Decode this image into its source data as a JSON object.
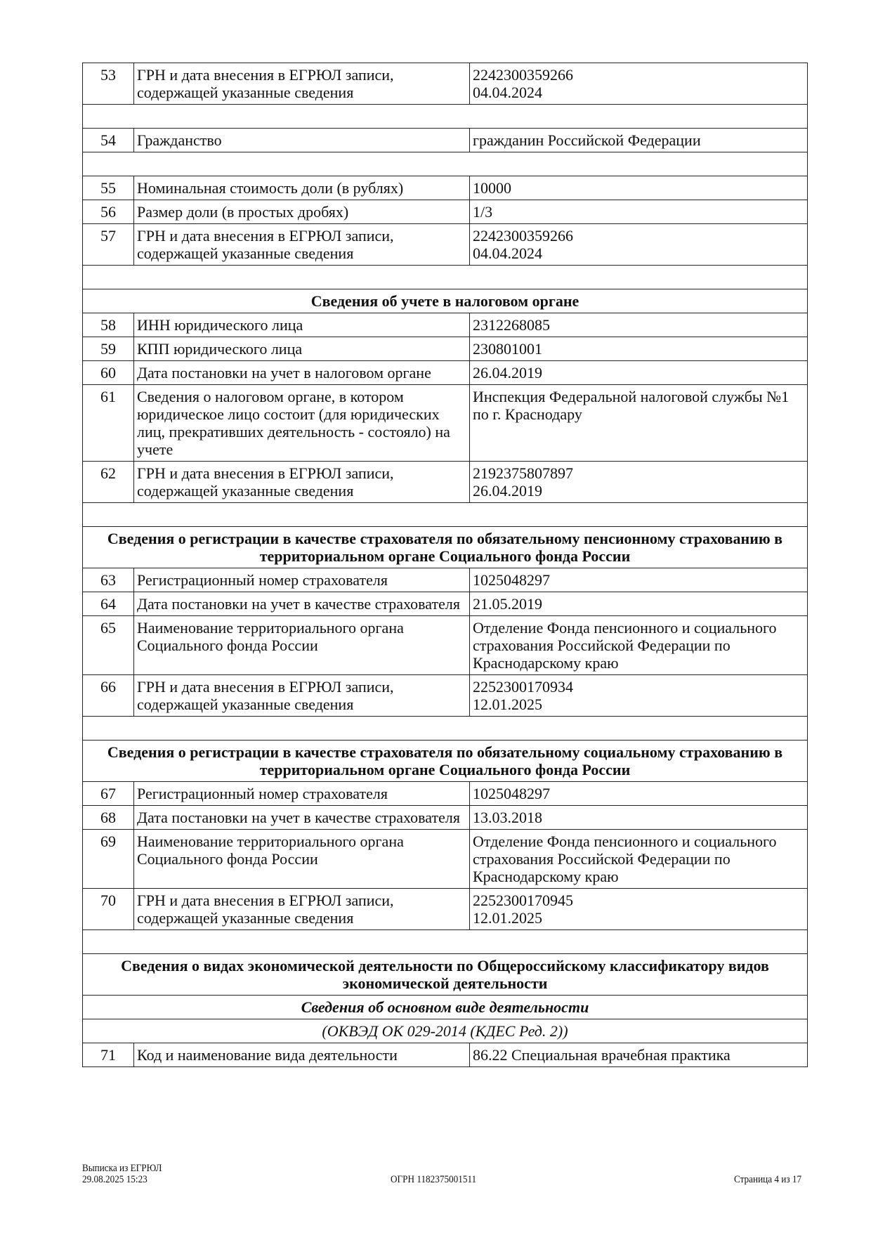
{
  "rows": [
    {
      "type": "row",
      "num": "53",
      "label": "ГРН и дата внесения в ЕГРЮЛ записи, содержащей указанные сведения",
      "value": "2242300359266\n04.04.2024"
    },
    {
      "type": "blank"
    },
    {
      "type": "row",
      "num": "54",
      "label": "Гражданство",
      "value": "гражданин Российской Федерации"
    },
    {
      "type": "blank"
    },
    {
      "type": "row",
      "num": "55",
      "label": "Номинальная стоимость доли (в рублях)",
      "value": "10000"
    },
    {
      "type": "row",
      "num": "56",
      "label": "Размер доли (в простых дробях)",
      "value": "1/3"
    },
    {
      "type": "row",
      "num": "57",
      "label": "ГРН и дата внесения в ЕГРЮЛ записи, содержащей указанные сведения",
      "value": "2242300359266\n04.04.2024"
    },
    {
      "type": "blank"
    },
    {
      "type": "head",
      "text": "Сведения об учете в налоговом органе"
    },
    {
      "type": "row",
      "num": "58",
      "label": "ИНН юридического лица",
      "value": "2312268085"
    },
    {
      "type": "row",
      "num": "59",
      "label": "КПП юридического лица",
      "value": "230801001"
    },
    {
      "type": "row",
      "num": "60",
      "label": "Дата постановки на учет в налоговом органе",
      "value": "26.04.2019"
    },
    {
      "type": "row",
      "num": "61",
      "label": "Сведения о налоговом органе, в котором юридическое лицо состоит (для юридических лиц, прекративших деятельность - состояло) на учете",
      "value": "Инспекция Федеральной налоговой службы №1 по г. Краснодару"
    },
    {
      "type": "row",
      "num": "62",
      "label": "ГРН и дата внесения в ЕГРЮЛ записи, содержащей указанные сведения",
      "value": "2192375807897\n26.04.2019"
    },
    {
      "type": "blank"
    },
    {
      "type": "head",
      "text": "Сведения о регистрации в качестве страхователя по обязательному пенсионному страхованию в территориальном органе Социального фонда России"
    },
    {
      "type": "row",
      "num": "63",
      "label": "Регистрационный номер страхователя",
      "value": "1025048297"
    },
    {
      "type": "row",
      "num": "64",
      "label": "Дата постановки на учет в качестве страхователя",
      "value": "21.05.2019"
    },
    {
      "type": "row",
      "num": "65",
      "label": "Наименование территориального органа Социального фонда России",
      "value": "Отделение Фонда пенсионного и социального страхования Российской Федерации по Краснодарскому краю"
    },
    {
      "type": "row",
      "num": "66",
      "label": "ГРН и дата внесения в ЕГРЮЛ записи, содержащей указанные сведения",
      "value": "2252300170934\n12.01.2025"
    },
    {
      "type": "blank"
    },
    {
      "type": "head",
      "text": "Сведения о регистрации в качестве страхователя по обязательному социальному страхованию в территориальном органе Социального фонда России"
    },
    {
      "type": "row",
      "num": "67",
      "label": "Регистрационный номер страхователя",
      "value": "1025048297"
    },
    {
      "type": "row",
      "num": "68",
      "label": "Дата постановки на учет в качестве страхователя",
      "value": "13.03.2018"
    },
    {
      "type": "row",
      "num": "69",
      "label": "Наименование территориального органа Социального фонда России",
      "value": "Отделение Фонда пенсионного и социального страхования Российской Федерации по Краснодарскому краю"
    },
    {
      "type": "row",
      "num": "70",
      "label": "ГРН и дата внесения в ЕГРЮЛ записи, содержащей указанные сведения",
      "value": "2252300170945\n12.01.2025"
    },
    {
      "type": "blank"
    },
    {
      "type": "head",
      "text": "Сведения о видах экономической деятельности по Общероссийскому классификатору видов экономической деятельности"
    },
    {
      "type": "sub",
      "text": "Сведения об основном виде деятельности"
    },
    {
      "type": "sub2",
      "text": "(ОКВЭД ОК 029-2014 (КДЕС Ред. 2))"
    },
    {
      "type": "row",
      "num": "71",
      "label": "Код и наименование вида деятельности",
      "value": "86.22 Специальная врачебная практика"
    }
  ],
  "footer": {
    "doc_title": "Выписка из ЕГРЮЛ",
    "datetime": "29.08.2025 15:23",
    "ogrn": "ОГРН 1182375001511",
    "page": "Страница 4 из 17"
  }
}
